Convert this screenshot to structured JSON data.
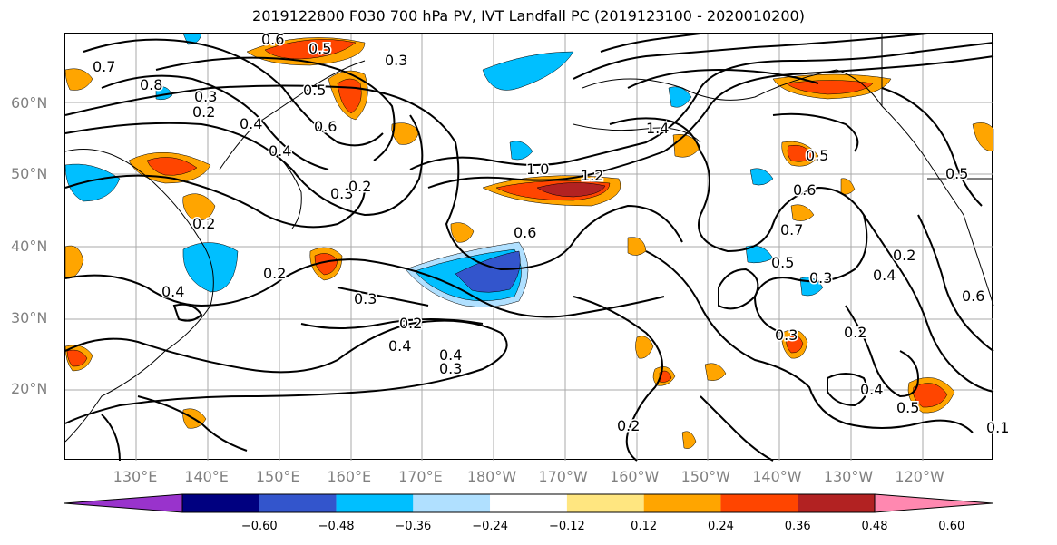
{
  "title": "2019122800 F030 700 hPa PV, IVT Landfall PC (2019123100 - 2020010200)",
  "lat_labels": [
    {
      "text": "60°N",
      "lat": 60
    },
    {
      "text": "50°N",
      "lat": 50
    },
    {
      "text": "40°N",
      "lat": 40
    },
    {
      "text": "30°N",
      "lat": 30
    },
    {
      "text": "20°N",
      "lat": 20
    }
  ],
  "lon_labels": [
    "130°E",
    "140°E",
    "150°E",
    "160°E",
    "170°E",
    "180°W",
    "170°W",
    "160°W",
    "150°W",
    "140°W",
    "130°W",
    "120°W"
  ],
  "colorbar": {
    "colors": [
      "#9933cc",
      "#000080",
      "#3355cc",
      "#00bfff",
      "#b0e0ff",
      "#ffffff",
      "#ffe680",
      "#ffa500",
      "#ff4500",
      "#b22222",
      "#ff88b0"
    ],
    "ticks": [
      "−0.60",
      "−0.48",
      "−0.36",
      "−0.24",
      "−0.12",
      "0.12",
      "0.24",
      "0.36",
      "0.48",
      "0.60"
    ]
  },
  "contour_labels": [
    "0.6",
    "0.5",
    "0.3",
    "0.2",
    "0.7",
    "0.8",
    "0.3",
    "0.5",
    "0.4",
    "0.6",
    "0.4",
    "0.3",
    "0.2",
    "1.4",
    "1.0",
    "1.2",
    "0.6",
    "0.5",
    "0.6",
    "0.7",
    "0.3",
    "0.4",
    "0.3",
    "0.2",
    "0.4",
    "0.4",
    "0.3",
    "0.5",
    "0.2",
    "0.3",
    "0.2",
    "0.4",
    "0.5",
    "0.2",
    "0.4",
    "0.1",
    "0.6",
    "0.5",
    "0.2",
    "0.2"
  ]
}
